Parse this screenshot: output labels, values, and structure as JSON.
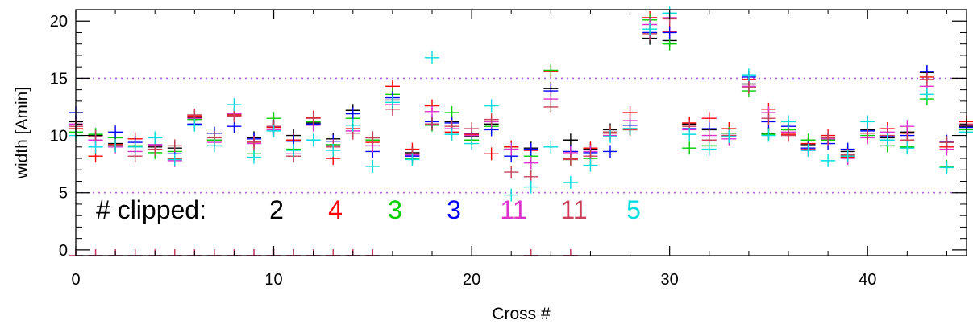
{
  "chart_data": {
    "type": "scatter",
    "marker": "plus",
    "xlabel": "Cross #",
    "ylabel": "width [Amin]",
    "xlim": [
      0,
      45
    ],
    "ylim": [
      -0.5,
      21
    ],
    "xticks": [
      {
        "value": 0,
        "label": "0"
      },
      {
        "value": 10,
        "label": "10"
      },
      {
        "value": 20,
        "label": "20"
      },
      {
        "value": 30,
        "label": "30"
      },
      {
        "value": 40,
        "label": "40"
      }
    ],
    "yticks": [
      {
        "value": 0,
        "label": "0"
      },
      {
        "value": 5,
        "label": "5"
      },
      {
        "value": 10,
        "label": "10"
      },
      {
        "value": 15,
        "label": "15"
      },
      {
        "value": 20,
        "label": "20"
      }
    ],
    "reference_lines": [
      {
        "y": 5,
        "color": "#b060e0",
        "style": "dotted"
      },
      {
        "y": 15,
        "color": "#b060e0",
        "style": "dotted"
      }
    ],
    "clipped_label": "# clipped:",
    "clipped_counts": [
      {
        "series": 0,
        "value": "2"
      },
      {
        "series": 1,
        "value": "4"
      },
      {
        "series": 2,
        "value": "3"
      },
      {
        "series": 3,
        "value": "3"
      },
      {
        "series": 4,
        "value": "11"
      },
      {
        "series": 5,
        "value": "11"
      },
      {
        "series": 6,
        "value": "5"
      }
    ],
    "clipped_markers": {
      "series": [
        4,
        5
      ],
      "x": [
        0,
        1,
        2,
        3,
        4,
        5,
        6,
        7,
        8,
        9,
        10,
        11,
        12,
        13,
        14,
        15,
        23,
        25
      ],
      "y": -0.5
    },
    "series": [
      {
        "color": "#000000",
        "x": [
          0,
          1,
          2,
          3,
          4,
          5,
          6,
          7,
          8,
          9,
          10,
          11,
          12,
          13,
          14,
          15,
          16,
          17,
          18,
          19,
          20,
          21,
          22,
          23,
          24,
          25,
          26,
          27,
          28,
          29,
          30,
          31,
          32,
          33,
          34,
          35,
          36,
          37,
          38,
          39,
          40,
          41,
          42,
          43,
          44,
          45
        ],
        "y": [
          11.2,
          10.0,
          9.3,
          9.0,
          9.0,
          8.9,
          11.6,
          10.2,
          11.8,
          9.8,
          10.8,
          10.0,
          11.1,
          9.7,
          12.2,
          9.8,
          13.1,
          8.5,
          11.0,
          11.2,
          9.9,
          11.0,
          9.0,
          8.9,
          14.1,
          9.6,
          8.8,
          10.5,
          10.6,
          18.5,
          18.3,
          11.0,
          10.5,
          10.2,
          14.5,
          10.2,
          10.5,
          9.2,
          9.6,
          8.6,
          10.5,
          9.8,
          10.3,
          15.5,
          9.4,
          10.8
        ]
      },
      {
        "color": "#ff0000",
        "x": [
          0,
          1,
          2,
          3,
          4,
          5,
          6,
          7,
          8,
          9,
          10,
          11,
          12,
          13,
          14,
          15,
          16,
          17,
          18,
          19,
          20,
          21,
          22,
          23,
          24,
          25,
          26,
          27,
          28,
          29,
          30,
          31,
          32,
          33,
          34,
          35,
          36,
          37,
          38,
          39,
          40,
          41,
          42,
          43,
          44,
          45
        ],
        "y": [
          10.6,
          8.2,
          9.2,
          9.7,
          9.1,
          8.0,
          11.7,
          9.6,
          11.8,
          9.5,
          10.7,
          9.6,
          11.6,
          8.0,
          10.6,
          9.4,
          14.3,
          8.8,
          12.6,
          10.3,
          10.1,
          8.4,
          9.0,
          8.7,
          15.6,
          8.0,
          8.9,
          10.2,
          12.0,
          20.3,
          19.1,
          11.1,
          11.5,
          10.6,
          14.9,
          12.3,
          10.1,
          9.3,
          10.0,
          8.1,
          10.2,
          10.6,
          10.2,
          15.1,
          9.0,
          11.2
        ]
      },
      {
        "color": "#00cc00",
        "x": [
          0,
          1,
          2,
          3,
          4,
          5,
          6,
          7,
          8,
          9,
          10,
          11,
          12,
          13,
          14,
          15,
          16,
          17,
          18,
          19,
          20,
          21,
          22,
          23,
          24,
          25,
          26,
          27,
          28,
          29,
          30,
          31,
          32,
          33,
          34,
          35,
          36,
          37,
          38,
          39,
          40,
          41,
          42,
          43,
          44,
          45
        ],
        "y": [
          10.3,
          10.1,
          9.8,
          9.1,
          8.5,
          8.6,
          11.4,
          9.6,
          11.9,
          8.4,
          11.5,
          8.8,
          11.2,
          9.2,
          11.5,
          9.6,
          13.6,
          8.0,
          10.9,
          12.0,
          9.6,
          10.8,
          8.8,
          8.2,
          15.7,
          7.9,
          8.0,
          10.3,
          10.5,
          20.1,
          18.0,
          8.9,
          9.1,
          10.2,
          13.9,
          10.1,
          10.5,
          9.6,
          9.6,
          8.2,
          10.0,
          9.1,
          9.0,
          13.2,
          7.3,
          10.5
        ]
      },
      {
        "color": "#0000ff",
        "x": [
          0,
          1,
          2,
          3,
          4,
          5,
          6,
          7,
          8,
          9,
          10,
          11,
          12,
          13,
          14,
          15,
          16,
          17,
          18,
          19,
          20,
          21,
          22,
          23,
          24,
          25,
          26,
          27,
          28,
          29,
          30,
          31,
          32,
          33,
          34,
          35,
          36,
          37,
          38,
          39,
          40,
          41,
          42,
          43,
          44,
          45
        ],
        "y": [
          12.0,
          9.6,
          10.3,
          9.4,
          9.2,
          8.4,
          11.0,
          10.2,
          10.8,
          9.7,
          10.8,
          9.5,
          11.0,
          9.5,
          11.9,
          8.6,
          13.3,
          8.2,
          11.2,
          11.1,
          10.2,
          10.5,
          8.2,
          8.8,
          13.9,
          8.6,
          8.5,
          8.6,
          10.9,
          19.0,
          19.0,
          10.6,
          10.6,
          10.0,
          15.1,
          11.2,
          10.8,
          8.9,
          9.3,
          8.8,
          10.4,
          9.9,
          10.0,
          15.6,
          9.5,
          10.7
        ]
      },
      {
        "color": "#dd33cc",
        "x": [
          0,
          1,
          2,
          3,
          4,
          5,
          6,
          7,
          8,
          9,
          10,
          11,
          12,
          13,
          14,
          15,
          16,
          17,
          18,
          19,
          20,
          21,
          22,
          23,
          24,
          25,
          26,
          27,
          28,
          29,
          30,
          31,
          32,
          33,
          34,
          35,
          36,
          37,
          38,
          39,
          40,
          41,
          42,
          43,
          44,
          45
        ],
        "y": [
          11.0,
          9.6,
          9.0,
          8.6,
          9.2,
          7.8,
          11.5,
          9.4,
          11.9,
          9.3,
          10.5,
          8.4,
          10.9,
          9.1,
          10.4,
          9.1,
          12.7,
          8.3,
          12.1,
          10.6,
          10.0,
          11.2,
          8.8,
          7.6,
          13.2,
          8.5,
          8.6,
          10.0,
          11.3,
          19.7,
          20.3,
          10.5,
          10.0,
          9.7,
          14.3,
          12.0,
          10.3,
          8.7,
          9.7,
          8.0,
          9.8,
          10.3,
          10.8,
          14.3,
          8.8,
          10.9
        ]
      },
      {
        "color": "#c8405a",
        "x": [
          0,
          1,
          2,
          3,
          4,
          5,
          6,
          7,
          8,
          9,
          10,
          11,
          12,
          13,
          14,
          15,
          16,
          17,
          18,
          19,
          20,
          21,
          22,
          23,
          24,
          25,
          26,
          27,
          28,
          29,
          30,
          31,
          32,
          33,
          34,
          35,
          36,
          37,
          38,
          39,
          40,
          41,
          42,
          43,
          44,
          45
        ],
        "y": [
          10.8,
          9.9,
          9.1,
          8.2,
          8.8,
          9.1,
          11.8,
          9.8,
          11.7,
          9.4,
          10.8,
          8.2,
          11.5,
          9.0,
          10.2,
          9.8,
          12.3,
          8.4,
          11.0,
          10.8,
          10.6,
          11.4,
          6.8,
          6.4,
          12.5,
          7.9,
          8.2,
          10.3,
          10.5,
          18.9,
          20.2,
          10.8,
          9.6,
          10.0,
          14.2,
          11.5,
          10.0,
          8.8,
          9.8,
          8.3,
          10.2,
          10.0,
          9.6,
          14.9,
          9.4,
          11.0
        ]
      },
      {
        "color": "#00dddd",
        "x": [
          0,
          1,
          2,
          3,
          4,
          5,
          6,
          7,
          8,
          9,
          10,
          11,
          12,
          13,
          14,
          15,
          16,
          17,
          18,
          19,
          20,
          21,
          22,
          23,
          24,
          25,
          26,
          27,
          28,
          29,
          30,
          31,
          32,
          33,
          34,
          35,
          36,
          37,
          38,
          39,
          40,
          41,
          42,
          43,
          44,
          45
        ],
        "y": [
          10.0,
          9.0,
          9.1,
          9.0,
          9.8,
          7.9,
          10.9,
          9.1,
          12.7,
          8.1,
          10.4,
          8.7,
          9.6,
          8.7,
          10.9,
          7.3,
          12.9,
          7.9,
          16.8,
          10.1,
          9.3,
          12.6,
          4.8,
          5.5,
          9.0,
          5.9,
          7.4,
          9.9,
          10.6,
          19.3,
          20.7,
          10.1,
          8.8,
          9.9,
          15.3,
          10.0,
          11.2,
          8.7,
          7.8,
          8.2,
          11.2,
          9.6,
          8.9,
          13.6,
          7.2,
          10.3
        ]
      }
    ]
  }
}
